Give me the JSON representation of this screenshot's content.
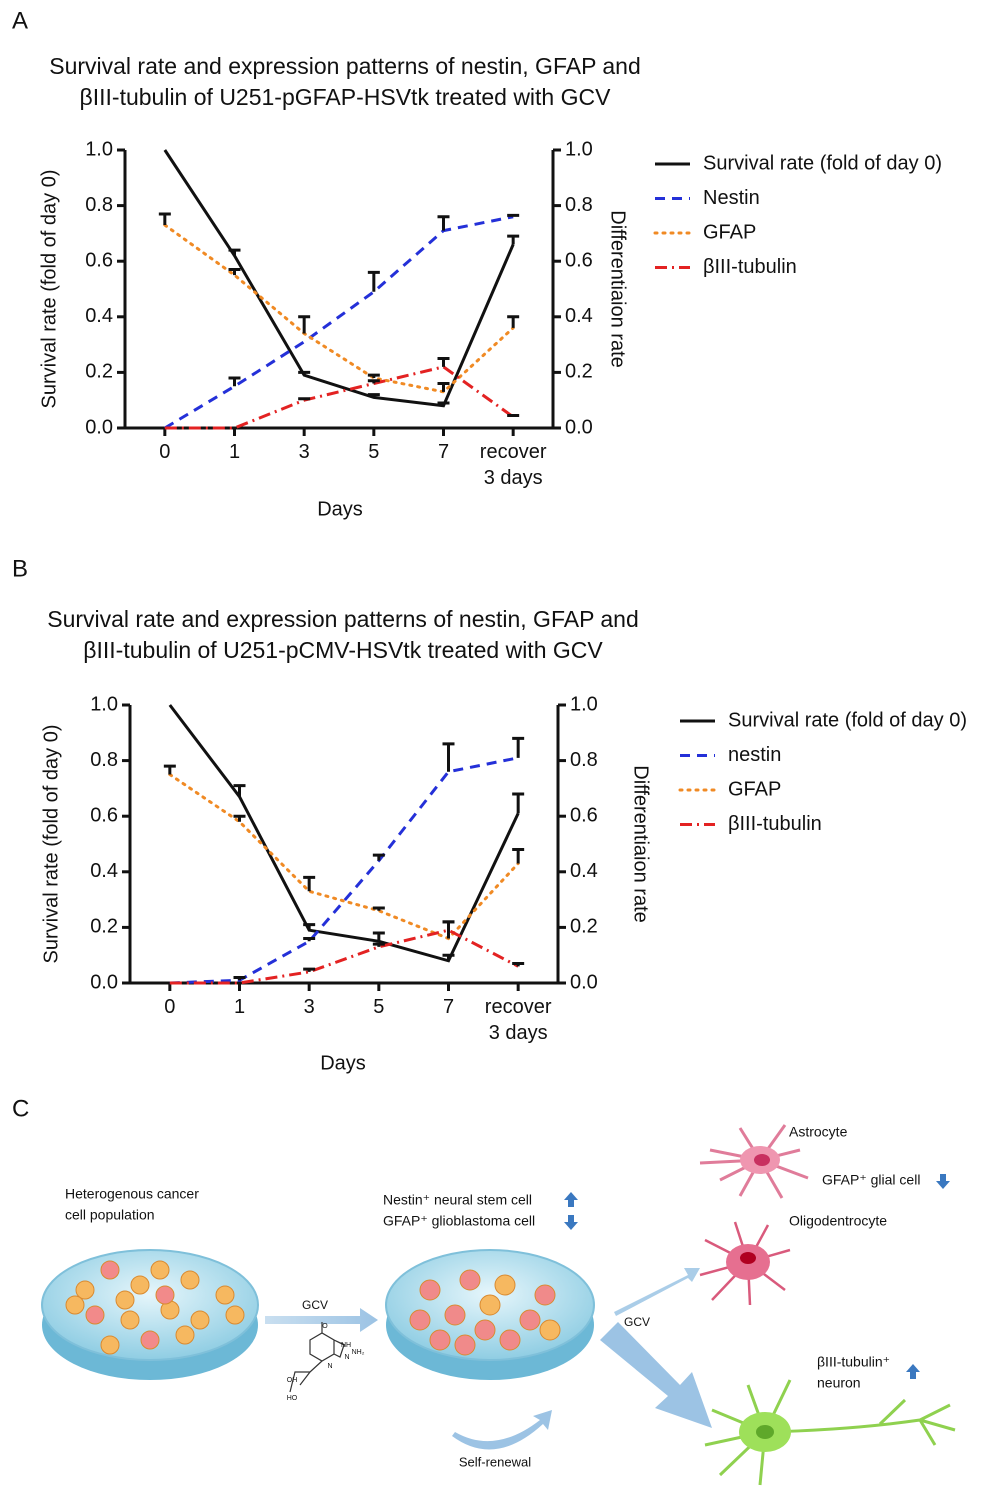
{
  "panel_labels": [
    "A",
    "B",
    "C"
  ],
  "chart_data": [
    {
      "type": "line",
      "title": [
        "Survival rate and expression patterns of nestin, GFAP and",
        "βIII-tubulin of U251-pGFAP-HSVtk treated with GCV"
      ],
      "x_label": "Days",
      "y_label": "Survival rate (fold of day 0)",
      "y2_label": "Differentiaion rate",
      "categories": [
        "0",
        "1",
        "3",
        "5",
        "7",
        "recover 3 days"
      ],
      "ylim": [
        0,
        1
      ],
      "yticks": [
        {
          "value": 0,
          "label": "0.0"
        },
        0.2,
        0.4,
        0.6,
        0.8,
        {
          "value": 1,
          "label": "1.0"
        }
      ],
      "y2lim": [
        0,
        1
      ],
      "y2ticks": [
        {
          "value": 0,
          "label": "0.0"
        },
        0.2,
        0.4,
        0.6,
        0.8,
        {
          "value": 1,
          "label": "1.0"
        }
      ],
      "legend": "right",
      "series": [
        {
          "name": "Survival rate (fold of day 0)",
          "color": "#111111",
          "style": "solid",
          "values": [
            1.0,
            0.62,
            0.19,
            0.11,
            0.08,
            0.66
          ],
          "errors": [
            null,
            0.02,
            0.01,
            0.01,
            0.01,
            0.03
          ]
        },
        {
          "name": "Nestin",
          "color": "#2430d8",
          "style": "dashed",
          "axis": "y2",
          "values": [
            0,
            0.15,
            0.31,
            0.49,
            0.71,
            0.76
          ],
          "errors": [
            null,
            0.03,
            null,
            0.07,
            0.05,
            0.005
          ]
        },
        {
          "name": "GFAP",
          "color": "#f08a24",
          "style": "dotted",
          "axis": "y2",
          "values": [
            0.73,
            0.55,
            0.34,
            0.18,
            0.13,
            0.36
          ],
          "errors": [
            0.04,
            0.02,
            0.06,
            0.01,
            0.03,
            0.04
          ]
        },
        {
          "name": "βIII-tubulin",
          "color": "#e32222",
          "style": "dashdot",
          "axis": "y2",
          "values": [
            0,
            0,
            0.1,
            0.16,
            0.22,
            0.04
          ],
          "errors": [
            null,
            null,
            0.005,
            0.01,
            0.03,
            0.005
          ]
        }
      ]
    },
    {
      "type": "line",
      "title": [
        "Survival rate and expression patterns of nestin, GFAP and",
        "βIII-tubulin of U251-pCMV-HSVtk treated with GCV"
      ],
      "x_label": "Days",
      "y_label": "Survival rate (fold of day 0)",
      "y2_label": "Differentiaion rate",
      "categories": [
        "0",
        "1",
        "3",
        "5",
        "7",
        "recover 3 days"
      ],
      "ylim": [
        0,
        1
      ],
      "yticks": [
        {
          "value": 0,
          "label": "0.0"
        },
        0.2,
        0.4,
        0.6,
        0.8,
        {
          "value": 1,
          "label": "1.0"
        }
      ],
      "y2lim": [
        0,
        1
      ],
      "y2ticks": [
        {
          "value": 0,
          "label": "0.0"
        },
        0.2,
        0.4,
        0.6,
        0.8,
        {
          "value": 1,
          "label": "1.0"
        }
      ],
      "legend": "right",
      "series": [
        {
          "name": "Survival rate (fold of day 0)",
          "color": "#111111",
          "style": "solid",
          "values": [
            1.0,
            0.67,
            0.19,
            0.15,
            0.08,
            0.61
          ],
          "errors": [
            null,
            0.04,
            0.02,
            0.03,
            0.02,
            0.07
          ]
        },
        {
          "name": "nestin",
          "color": "#2430d8",
          "style": "dashed",
          "axis": "y2",
          "values": [
            0,
            0.01,
            0.15,
            0.44,
            0.76,
            0.81
          ],
          "errors": [
            null,
            0.01,
            0.01,
            0.02,
            0.1,
            0.07
          ]
        },
        {
          "name": "GFAP",
          "color": "#f08a24",
          "style": "dotted",
          "axis": "y2",
          "values": [
            0.75,
            0.58,
            0.33,
            0.26,
            0.16,
            0.43
          ],
          "errors": [
            0.03,
            0.02,
            0.05,
            0.01,
            0.06,
            0.05
          ]
        },
        {
          "name": "βIII-tubulin",
          "color": "#e32222",
          "style": "dashdot",
          "axis": "y2",
          "values": [
            0,
            0,
            0.04,
            0.13,
            0.19,
            0.06
          ],
          "errors": [
            null,
            null,
            0.01,
            0.01,
            0.03,
            0.01
          ]
        }
      ]
    }
  ],
  "diagram": {
    "population": [
      "Heterogenous cancer",
      "cell population"
    ],
    "drug": "GCV",
    "molecule_labels": [
      "O",
      "NH",
      "N",
      "N",
      "NH₂",
      "HO",
      "OH"
    ],
    "stem_cells": [
      "Nestin⁺ neural stem cell",
      "GFAP⁺ glioblastoma cell"
    ],
    "astrocyte": "Astrocyte",
    "glial": "GFAP⁺ glial cell",
    "oligodendrocyte": "Oligodentrocyte",
    "drug2": "GCV",
    "neuron": [
      "βIII-tubulin⁺",
      "neuron"
    ],
    "self_renewal": "Self-renewal"
  }
}
